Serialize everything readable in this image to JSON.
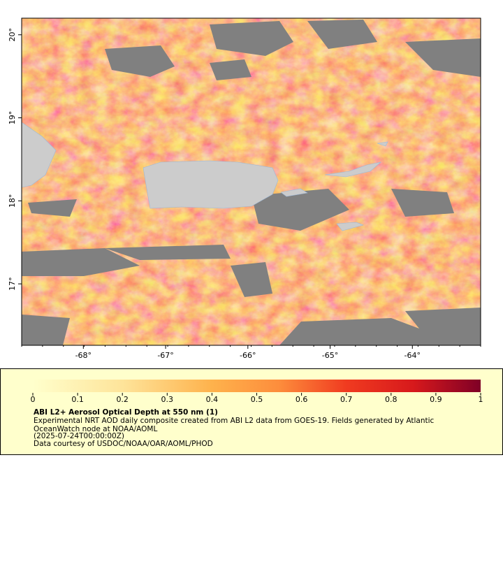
{
  "map": {
    "xlim": [
      -68.75,
      -63.17
    ],
    "ylim": [
      16.26,
      20.2
    ],
    "xticks": [
      {
        "value": -68,
        "label": "-68°"
      },
      {
        "value": -67,
        "label": "-67°"
      },
      {
        "value": -66,
        "label": "-66°"
      },
      {
        "value": -65,
        "label": "-65°"
      },
      {
        "value": -64,
        "label": "-64°"
      }
    ],
    "yticks": [
      {
        "value": 20,
        "label": "20°"
      },
      {
        "value": 19,
        "label": "19°"
      },
      {
        "value": 18,
        "label": "18°"
      },
      {
        "value": 17,
        "label": "17°"
      }
    ]
  },
  "legend": {
    "colorbar_lim": [
      0,
      1
    ],
    "colorbar_ticks": [
      0,
      0.1,
      0.2,
      0.3,
      0.4,
      0.5,
      0.6,
      0.7,
      0.8,
      0.9,
      1
    ],
    "title": "ABI L2+ Aerosol Optical Depth at 550 nm (1)",
    "lines": [
      "Experimental NRT AOD daily composite created from ABI L2 data from GOES-19. Fields generated by Atlantic",
      "OceanWatch node at NOAA/AOML",
      "(2025-07-24T00:00:00Z)",
      "Data courtesy of USDOC/NOAA/OAR/AOML/PHOD"
    ]
  }
}
